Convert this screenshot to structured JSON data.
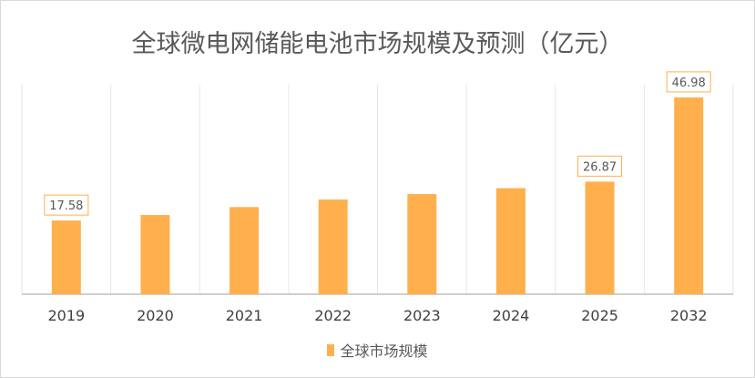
{
  "chart_data": {
    "type": "bar",
    "title": "全球微电网储能电池市场规模及预测（亿元）",
    "categories": [
      "2019",
      "2020",
      "2021",
      "2022",
      "2023",
      "2024",
      "2025",
      "2032"
    ],
    "series": [
      {
        "name": "全球市场规模",
        "values": [
          17.58,
          18.9,
          20.8,
          22.6,
          23.9,
          25.3,
          26.87,
          46.98
        ],
        "color": "#ffb04d"
      }
    ],
    "data_labels": [
      {
        "index": 0,
        "text": "17.58"
      },
      {
        "index": 6,
        "text": "26.87"
      },
      {
        "index": 7,
        "text": "46.98"
      }
    ],
    "ylim": [
      0,
      50
    ],
    "grid": "vertical",
    "legend": "bottom"
  }
}
